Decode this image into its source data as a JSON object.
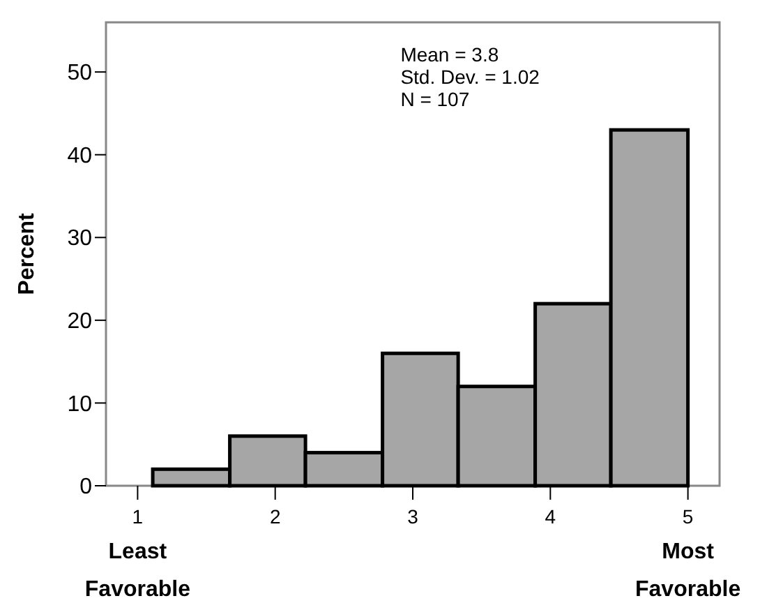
{
  "chart_data": {
    "type": "histogram",
    "ylabel": "Percent",
    "bins": [
      1.11,
      1.67,
      2.22,
      2.78,
      3.33,
      3.89,
      4.44,
      5
    ],
    "values": [
      2,
      6,
      4,
      16,
      12,
      22,
      43
    ],
    "color": "#a6a6a6",
    "xlim": [
      0.77,
      5.23
    ],
    "xticks": [
      1,
      2,
      3,
      4,
      5
    ],
    "ylim": [
      0,
      56
    ],
    "yticks": [
      0,
      10,
      20,
      30,
      40,
      50
    ],
    "grid": false,
    "annotations": [
      "Mean = 3.8\nStd. Dev. = 1.02\nN = 107",
      "Least\nFavorable",
      "Most\nFavorable"
    ]
  }
}
